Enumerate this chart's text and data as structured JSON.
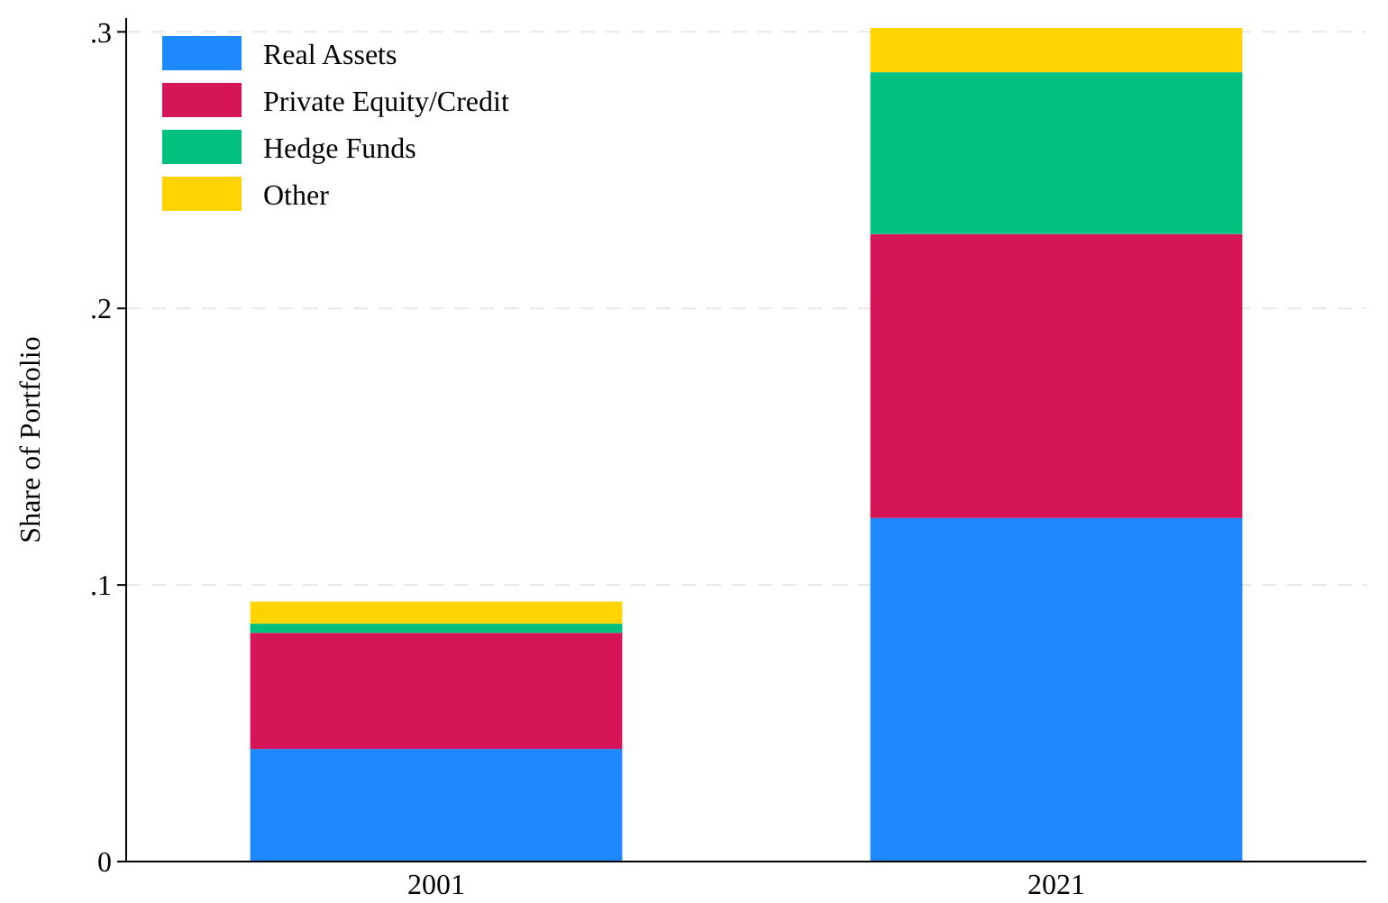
{
  "chart_data": {
    "type": "bar",
    "ylabel": "Share of Portfolio",
    "categories": [
      "2001",
      "2021"
    ],
    "stacked": true,
    "series": [
      {
        "name": "Real Assets",
        "color": "#1e88ff",
        "values": [
          0.0407,
          0.1242
        ]
      },
      {
        "name": "Private Equity/Credit",
        "color": "#d51558",
        "values": [
          0.042,
          0.1027
        ]
      },
      {
        "name": "Hedge Funds",
        "color": "#02c07e",
        "values": [
          0.0033,
          0.0585
        ]
      },
      {
        "name": "Other",
        "color": "#ffd400",
        "values": [
          0.008,
          0.016
        ]
      }
    ],
    "ylim": [
      0,
      0.305
    ],
    "yticks": [
      0,
      {
        "value": 0.1,
        "label": ".1"
      },
      {
        "value": 0.2,
        "label": ".2"
      },
      {
        "value": 0.3,
        "label": ".3"
      }
    ],
    "grid": "y",
    "legend": "top left"
  }
}
